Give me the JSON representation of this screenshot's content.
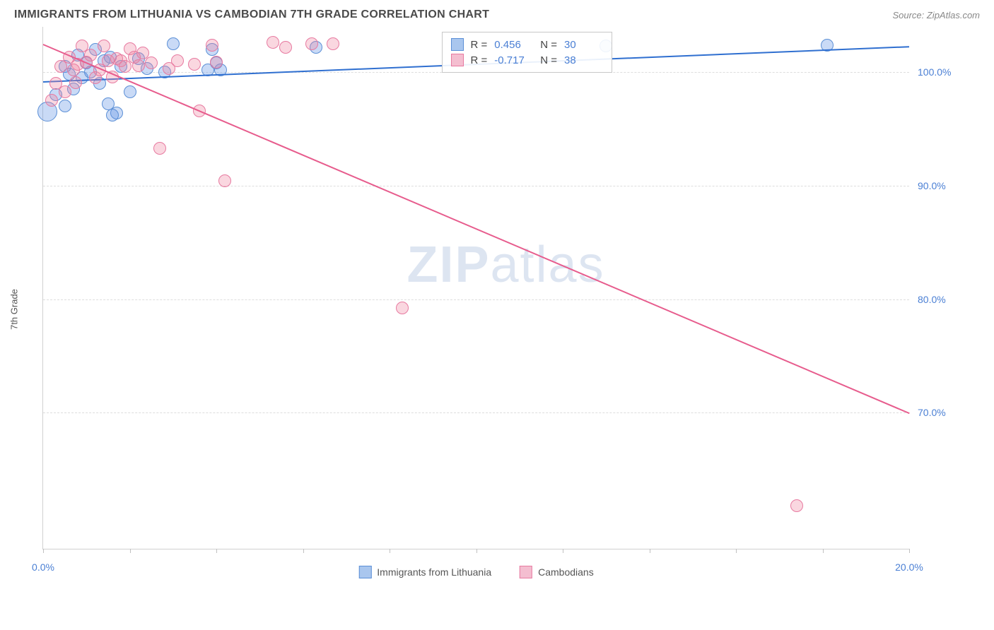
{
  "title": "IMMIGRANTS FROM LITHUANIA VS CAMBODIAN 7TH GRADE CORRELATION CHART",
  "source": "Source: ZipAtlas.com",
  "watermark": {
    "zip": "ZIP",
    "atlas": "atlas"
  },
  "chart": {
    "type": "scatter",
    "ylabel": "7th Grade",
    "background_color": "#ffffff",
    "grid_color": "#dddddd",
    "axis_color": "#d0d0d0",
    "xlim": [
      0,
      20
    ],
    "ylim": [
      58,
      104
    ],
    "xticks": [
      {
        "x": 0,
        "label": "0.0%"
      },
      {
        "x": 2
      },
      {
        "x": 4
      },
      {
        "x": 6
      },
      {
        "x": 8
      },
      {
        "x": 10
      },
      {
        "x": 12
      },
      {
        "x": 14
      },
      {
        "x": 16
      },
      {
        "x": 18
      },
      {
        "x": 20,
        "label": "20.0%"
      }
    ],
    "yticks": [
      {
        "y": 70,
        "label": "70.0%"
      },
      {
        "y": 80,
        "label": "80.0%"
      },
      {
        "y": 90,
        "label": "90.0%"
      },
      {
        "y": 100,
        "label": "100.0%"
      }
    ],
    "stats_box": {
      "left_pct": 46,
      "top_pct": 1
    },
    "series": [
      {
        "name": "Immigrants from Lithuania",
        "color_fill": "rgba(100,150,230,0.35)",
        "color_stroke": "#5b8fd6",
        "swatch_fill": "#a9c6ee",
        "swatch_border": "#5b8fd6",
        "r_text": "R =",
        "r_value": "0.456",
        "n_text": "N =",
        "n_value": "30",
        "marker_radius": 9,
        "trend": {
          "x1": 0,
          "y1": 99.2,
          "x2": 20,
          "y2": 102.3,
          "color": "#2f6fd0",
          "width": 2
        },
        "points": [
          {
            "x": 0.1,
            "y": 96.5,
            "r": 14
          },
          {
            "x": 0.3,
            "y": 98
          },
          {
            "x": 0.5,
            "y": 97
          },
          {
            "x": 0.5,
            "y": 100.5
          },
          {
            "x": 0.6,
            "y": 99.8
          },
          {
            "x": 0.7,
            "y": 98.5
          },
          {
            "x": 0.8,
            "y": 101.5
          },
          {
            "x": 0.9,
            "y": 99.5
          },
          {
            "x": 1.0,
            "y": 100.8
          },
          {
            "x": 1.1,
            "y": 100
          },
          {
            "x": 1.2,
            "y": 102
          },
          {
            "x": 1.3,
            "y": 99
          },
          {
            "x": 1.4,
            "y": 101
          },
          {
            "x": 1.5,
            "y": 97.2
          },
          {
            "x": 1.55,
            "y": 101.3
          },
          {
            "x": 1.7,
            "y": 96.4
          },
          {
            "x": 1.8,
            "y": 100.5
          },
          {
            "x": 2.0,
            "y": 98.3
          },
          {
            "x": 2.2,
            "y": 101.2
          },
          {
            "x": 2.4,
            "y": 100.3
          },
          {
            "x": 2.8,
            "y": 100
          },
          {
            "x": 3.0,
            "y": 102.5
          },
          {
            "x": 3.8,
            "y": 100.2
          },
          {
            "x": 3.9,
            "y": 102
          },
          {
            "x": 4.0,
            "y": 100.8
          },
          {
            "x": 4.1,
            "y": 100.2
          },
          {
            "x": 6.3,
            "y": 102.2
          },
          {
            "x": 13.0,
            "y": 102.3
          },
          {
            "x": 18.1,
            "y": 102.4
          },
          {
            "x": 1.6,
            "y": 96.2
          }
        ]
      },
      {
        "name": "Cambodians",
        "color_fill": "rgba(240,130,160,0.32)",
        "color_stroke": "#e77aa0",
        "swatch_fill": "#f4bed0",
        "swatch_border": "#e77aa0",
        "r_text": "R =",
        "r_value": "-0.717",
        "n_text": "N =",
        "n_value": "38",
        "marker_radius": 9,
        "trend": {
          "x1": 0,
          "y1": 102.5,
          "x2": 20,
          "y2": 70,
          "color": "#e75c8d",
          "width": 2
        },
        "points": [
          {
            "x": 0.2,
            "y": 97.5
          },
          {
            "x": 0.3,
            "y": 99
          },
          {
            "x": 0.4,
            "y": 100.5
          },
          {
            "x": 0.5,
            "y": 98.3
          },
          {
            "x": 0.6,
            "y": 101.3
          },
          {
            "x": 0.7,
            "y": 100.2
          },
          {
            "x": 0.75,
            "y": 99.1
          },
          {
            "x": 0.8,
            "y": 100.7
          },
          {
            "x": 0.9,
            "y": 102.3
          },
          {
            "x": 1.0,
            "y": 100.9
          },
          {
            "x": 1.1,
            "y": 101.5
          },
          {
            "x": 1.2,
            "y": 99.5
          },
          {
            "x": 1.3,
            "y": 100.2
          },
          {
            "x": 1.4,
            "y": 102.3
          },
          {
            "x": 1.5,
            "y": 101
          },
          {
            "x": 1.6,
            "y": 99.6
          },
          {
            "x": 1.7,
            "y": 101.2
          },
          {
            "x": 1.8,
            "y": 101
          },
          {
            "x": 1.9,
            "y": 100.5
          },
          {
            "x": 2.0,
            "y": 102.1
          },
          {
            "x": 2.1,
            "y": 101.3
          },
          {
            "x": 2.2,
            "y": 100.6
          },
          {
            "x": 2.3,
            "y": 101.7
          },
          {
            "x": 2.5,
            "y": 100.8
          },
          {
            "x": 2.7,
            "y": 93.3
          },
          {
            "x": 2.9,
            "y": 100.3
          },
          {
            "x": 3.1,
            "y": 101
          },
          {
            "x": 3.5,
            "y": 100.7
          },
          {
            "x": 3.6,
            "y": 96.6
          },
          {
            "x": 3.9,
            "y": 102.4
          },
          {
            "x": 4.2,
            "y": 90.4
          },
          {
            "x": 5.3,
            "y": 102.6
          },
          {
            "x": 5.6,
            "y": 102.2
          },
          {
            "x": 6.2,
            "y": 102.5
          },
          {
            "x": 6.7,
            "y": 102.5
          },
          {
            "x": 8.3,
            "y": 79.2
          },
          {
            "x": 17.4,
            "y": 61.8
          },
          {
            "x": 4.0,
            "y": 100.9
          }
        ]
      }
    ]
  }
}
